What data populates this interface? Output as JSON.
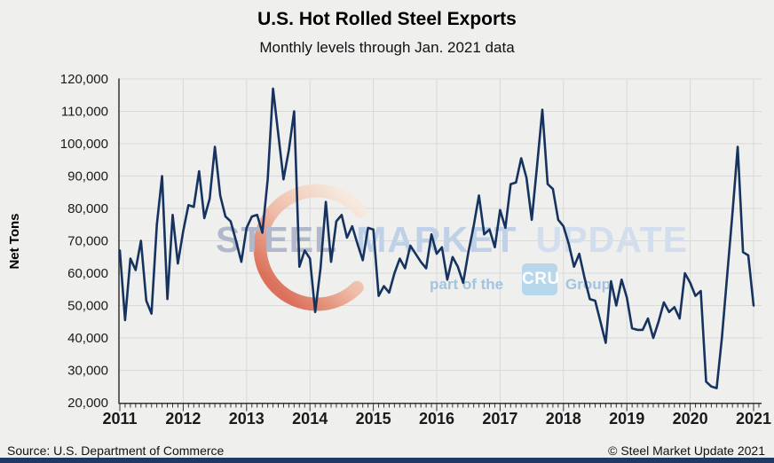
{
  "header": {
    "title": "U.S. Hot Rolled Steel Exports",
    "subtitle": "Monthly levels through Jan. 2021 data"
  },
  "footer": {
    "source": "Source: U.S. Department of Commerce",
    "copyright": "© Steel Market Update 2021"
  },
  "watermark": {
    "words": [
      "STEEL",
      "MARKET",
      "UPDATE"
    ],
    "tagline_prefix": "part of the",
    "badge": "CRU",
    "tagline_suffix": "Group",
    "colors": {
      "word_steel": "#b2b8cb",
      "word_market": "#bed1e6",
      "word_update": "#d2deee",
      "tagline": "#a2c4e0",
      "badge_bg": "#b7d7ec",
      "swoosh_top": "#f8e8dc",
      "swoosh_bottom": "#d95c42"
    }
  },
  "chart_data": {
    "type": "line",
    "title": "U.S. Hot Rolled Steel Exports",
    "subtitle": "Monthly levels through Jan. 2021 data",
    "xlabel": "",
    "ylabel": "Net Tons",
    "ylim": [
      20000,
      120000
    ],
    "ytick_step": 10000,
    "grid": true,
    "line_color": "#16335f",
    "axis_color": "#333333",
    "gridline_color": "#d9d9d9",
    "text_color": "#1a1a1a",
    "x_tick_years": [
      "2011",
      "2012",
      "2013",
      "2014",
      "2015",
      "2016",
      "2017",
      "2018",
      "2019",
      "2020",
      "2021"
    ],
    "frequency": "monthly",
    "start": "2011-01",
    "end": "2021-01",
    "series": [
      {
        "name": "U.S. hot rolled steel exports (net tons)",
        "values": [
          67000,
          45500,
          64500,
          61000,
          70000,
          51500,
          47500,
          75000,
          90000,
          52000,
          78000,
          63000,
          73000,
          81000,
          80500,
          91500,
          77000,
          83000,
          99000,
          84000,
          77500,
          76000,
          70000,
          63500,
          74000,
          77500,
          78000,
          72500,
          89000,
          117000,
          103000,
          89000,
          98000,
          110000,
          62000,
          67000,
          64500,
          48000,
          61500,
          82000,
          63500,
          76000,
          78000,
          71000,
          74500,
          69000,
          64000,
          74000,
          73500,
          53000,
          56000,
          54000,
          60000,
          64500,
          61500,
          68500,
          66000,
          63500,
          61500,
          72000,
          66000,
          68000,
          58000,
          65000,
          62000,
          57000,
          66500,
          74500,
          84000,
          72000,
          73500,
          68000,
          79500,
          74000,
          87500,
          88000,
          95500,
          89500,
          76500,
          93000,
          110500,
          87500,
          86000,
          76500,
          74500,
          69000,
          62000,
          66000,
          58500,
          52000,
          51500,
          45000,
          38500,
          57500,
          50000,
          58000,
          52500,
          43000,
          42500,
          42500,
          46000,
          40000,
          45000,
          51000,
          48000,
          49500,
          46000,
          60000,
          57000,
          53000,
          54500,
          26500,
          25000,
          24500,
          40000,
          59500,
          78500,
          99000,
          66500,
          65500,
          50000
        ]
      }
    ]
  }
}
